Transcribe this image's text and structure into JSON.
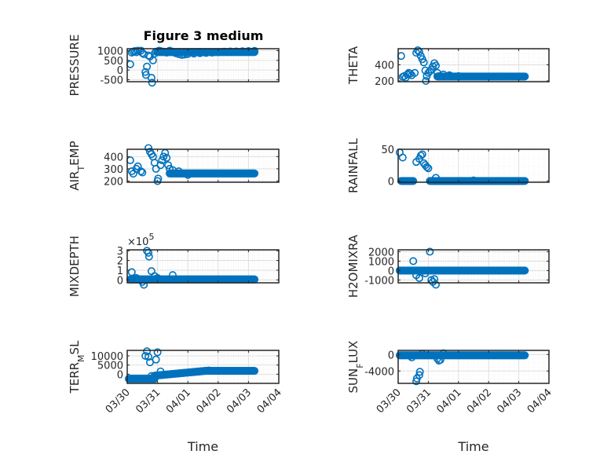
{
  "figure": {
    "title": "Figure 3 medium",
    "marker_color": "#0072BD",
    "axes_color": "#262626",
    "grid_color": "#dfdfdf"
  },
  "chart_data": [
    {
      "type": "scatter",
      "title": "Figure 3 medium",
      "ylabel": "PRESSURE",
      "ylabel_parts": [
        {
          "t": "PRESSURE",
          "sub": false
        }
      ],
      "xlabel": "",
      "xlim": [
        0,
        5
      ],
      "ylim": [
        -600,
        1100
      ],
      "yticks": [
        -500,
        0,
        500,
        1000
      ],
      "yticklabels": [
        "-500",
        "0",
        "500",
        "1000"
      ],
      "xticks": [
        0,
        1,
        2,
        3,
        4,
        5
      ],
      "xticklabels": [
        "03/30",
        "03/31",
        "04/01",
        "04/02",
        "04/03",
        "04/04"
      ],
      "show_xticklabels": false,
      "grid": true,
      "exponent": "",
      "points": [
        [
          0.1,
          300
        ],
        [
          0.15,
          900
        ],
        [
          0.2,
          950
        ],
        [
          0.25,
          980
        ],
        [
          0.3,
          920
        ],
        [
          0.35,
          1000
        ],
        [
          0.45,
          1000
        ],
        [
          0.5,
          880
        ],
        [
          0.55,
          820
        ],
        [
          0.6,
          -100
        ],
        [
          0.62,
          -250
        ],
        [
          0.65,
          180
        ],
        [
          0.7,
          750
        ],
        [
          0.75,
          700
        ],
        [
          0.8,
          -400
        ],
        [
          0.82,
          -650
        ],
        [
          0.85,
          500
        ],
        [
          0.9,
          850
        ],
        [
          0.95,
          950
        ],
        [
          1.05,
          1000
        ],
        [
          1.1,
          980
        ],
        [
          1.2,
          950
        ],
        [
          1.3,
          900
        ],
        [
          1.4,
          1000
        ],
        [
          1.5,
          950
        ],
        [
          1.6,
          870
        ],
        [
          1.7,
          820
        ],
        [
          1.8,
          780
        ],
        [
          1.9,
          800
        ],
        [
          2.0,
          830
        ],
        [
          2.2,
          850
        ],
        [
          2.4,
          870
        ],
        [
          2.6,
          880
        ],
        [
          2.8,
          900
        ],
        [
          3.0,
          920
        ],
        [
          3.2,
          950
        ],
        [
          3.4,
          960
        ],
        [
          3.6,
          960
        ],
        [
          3.8,
          970
        ],
        [
          4.0,
          980
        ],
        [
          4.2,
          990
        ]
      ],
      "dense_series": [
        {
          "x0": 1.0,
          "x1": 4.2,
          "y": 930
        }
      ]
    },
    {
      "type": "scatter",
      "ylabel": "THETA",
      "ylabel_parts": [
        {
          "t": "THETA",
          "sub": false
        }
      ],
      "xlim": [
        0,
        5
      ],
      "ylim": [
        190,
        600
      ],
      "yticks": [
        200,
        400
      ],
      "yticklabels": [
        "200",
        "400"
      ],
      "xticks": [
        0,
        1,
        2,
        3,
        4,
        5
      ],
      "xticklabels": [
        "03/30",
        "03/31",
        "04/01",
        "04/02",
        "04/03",
        "04/04"
      ],
      "show_xticklabels": false,
      "grid": true,
      "exponent": "",
      "points": [
        [
          0.1,
          510
        ],
        [
          0.15,
          250
        ],
        [
          0.2,
          260
        ],
        [
          0.25,
          240
        ],
        [
          0.3,
          280
        ],
        [
          0.35,
          300
        ],
        [
          0.4,
          290
        ],
        [
          0.45,
          270
        ],
        [
          0.55,
          300
        ],
        [
          0.6,
          550
        ],
        [
          0.65,
          580
        ],
        [
          0.7,
          560
        ],
        [
          0.75,
          510
        ],
        [
          0.8,
          470
        ],
        [
          0.85,
          430
        ],
        [
          0.9,
          330
        ],
        [
          0.95,
          260
        ],
        [
          0.92,
          200
        ],
        [
          1.0,
          300
        ],
        [
          1.05,
          320
        ],
        [
          1.1,
          340
        ],
        [
          1.15,
          380
        ],
        [
          1.2,
          420
        ],
        [
          1.25,
          390
        ],
        [
          1.3,
          300
        ],
        [
          1.35,
          260
        ],
        [
          1.5,
          280
        ],
        [
          1.7,
          270
        ],
        [
          2.0,
          260
        ]
      ],
      "dense_series": [
        {
          "x0": 1.3,
          "x1": 4.2,
          "y": 255
        }
      ]
    },
    {
      "type": "scatter",
      "ylabel": "AIR_TEMP",
      "ylabel_parts": [
        {
          "t": "AIR",
          "sub": false
        },
        {
          "t": "T",
          "sub": true
        },
        {
          "t": "EMP",
          "sub": false
        }
      ],
      "xlim": [
        0,
        5
      ],
      "ylim": [
        190,
        460
      ],
      "yticks": [
        200,
        300,
        400
      ],
      "yticklabels": [
        "200",
        "300",
        "400"
      ],
      "xticks": [
        0,
        1,
        2,
        3,
        4,
        5
      ],
      "xticklabels": [
        "03/30",
        "03/31",
        "04/01",
        "04/02",
        "04/03",
        "04/04"
      ],
      "show_xticklabels": false,
      "grid": true,
      "exponent": "",
      "points": [
        [
          0.1,
          370
        ],
        [
          0.15,
          280
        ],
        [
          0.2,
          260
        ],
        [
          0.3,
          300
        ],
        [
          0.35,
          320
        ],
        [
          0.45,
          280
        ],
        [
          0.5,
          270
        ],
        [
          0.7,
          470
        ],
        [
          0.75,
          440
        ],
        [
          0.8,
          420
        ],
        [
          0.85,
          400
        ],
        [
          0.9,
          350
        ],
        [
          0.95,
          300
        ],
        [
          1.0,
          200
        ],
        [
          1.02,
          220
        ],
        [
          1.1,
          330
        ],
        [
          1.15,
          370
        ],
        [
          1.2,
          400
        ],
        [
          1.25,
          430
        ],
        [
          1.3,
          390
        ],
        [
          1.35,
          330
        ],
        [
          1.4,
          300
        ],
        [
          1.5,
          290
        ],
        [
          1.7,
          280
        ],
        [
          2.0,
          250
        ]
      ],
      "dense_series": [
        {
          "x0": 1.4,
          "x1": 4.2,
          "y": 262
        }
      ]
    },
    {
      "type": "scatter",
      "ylabel": "RAINFALL",
      "ylabel_parts": [
        {
          "t": "RAINFALL",
          "sub": false
        }
      ],
      "xlim": [
        0,
        5
      ],
      "ylim": [
        -2,
        50
      ],
      "yticks": [
        0,
        50
      ],
      "yticklabels": [
        "0",
        "50"
      ],
      "xticks": [
        0,
        1,
        2,
        3,
        4,
        5
      ],
      "xticklabels": [
        "03/30",
        "03/31",
        "04/01",
        "04/02",
        "04/03",
        "04/04"
      ],
      "show_xticklabels": false,
      "grid": true,
      "exponent": "",
      "points": [
        [
          0.05,
          45
        ],
        [
          0.15,
          37
        ],
        [
          0.6,
          30
        ],
        [
          0.7,
          35
        ],
        [
          0.75,
          40
        ],
        [
          0.8,
          42
        ],
        [
          0.85,
          28
        ],
        [
          0.9,
          25
        ],
        [
          0.95,
          22
        ],
        [
          1.0,
          20
        ],
        [
          1.25,
          5
        ],
        [
          2.5,
          1
        ]
      ],
      "dense_series": [
        {
          "x0": 0.1,
          "x1": 0.5,
          "y": 0
        },
        {
          "x0": 1.05,
          "x1": 4.2,
          "y": 0
        }
      ]
    },
    {
      "type": "scatter",
      "ylabel": "MIXDEPTH",
      "ylabel_parts": [
        {
          "t": "MIXDEPTH",
          "sub": false
        }
      ],
      "xlim": [
        0,
        5
      ],
      "ylim": [
        -30000,
        310000
      ],
      "yticks": [
        0,
        100000,
        200000,
        300000
      ],
      "yticklabels": [
        "0",
        "1",
        "2",
        "3"
      ],
      "xticks": [
        0,
        1,
        2,
        3,
        4,
        5
      ],
      "xticklabels": [
        "03/30",
        "03/31",
        "04/01",
        "04/02",
        "04/03",
        "04/04"
      ],
      "show_xticklabels": false,
      "grid": true,
      "exponent": "×10^5",
      "points": [
        [
          0.15,
          80000
        ],
        [
          0.3,
          20000
        ],
        [
          0.5,
          -20000
        ],
        [
          0.55,
          -50000
        ],
        [
          0.65,
          300000
        ],
        [
          0.7,
          280000
        ],
        [
          0.72,
          240000
        ],
        [
          0.8,
          90000
        ],
        [
          0.9,
          40000
        ],
        [
          1.0,
          20000
        ],
        [
          1.5,
          50000
        ]
      ],
      "dense_series": [
        {
          "x0": 0.1,
          "x1": 4.2,
          "y": 5000
        }
      ]
    },
    {
      "type": "scatter",
      "ylabel": "H2OMIXRA",
      "ylabel_parts": [
        {
          "t": "H2OMIXRA",
          "sub": false
        }
      ],
      "xlim": [
        0,
        5
      ],
      "ylim": [
        -1300,
        2200
      ],
      "yticks": [
        -1000,
        0,
        1000,
        2000
      ],
      "yticklabels": [
        "-1000",
        "0",
        "1000",
        "2000"
      ],
      "xticks": [
        0,
        1,
        2,
        3,
        4,
        5
      ],
      "xticklabels": [
        "03/30",
        "03/31",
        "04/01",
        "04/02",
        "04/03",
        "04/04"
      ],
      "show_xticklabels": false,
      "grid": true,
      "exponent": "",
      "points": [
        [
          0.5,
          1000
        ],
        [
          0.6,
          -500
        ],
        [
          0.7,
          -800
        ],
        [
          0.9,
          -300
        ],
        [
          1.05,
          2000
        ],
        [
          1.1,
          -1000
        ],
        [
          1.15,
          -1200
        ],
        [
          1.2,
          -900
        ],
        [
          1.25,
          -1500
        ]
      ],
      "dense_series": [
        {
          "x0": 0.05,
          "x1": 4.2,
          "y": 0
        }
      ]
    },
    {
      "type": "scatter",
      "ylabel": "TERR_MSL",
      "ylabel_parts": [
        {
          "t": "TERR",
          "sub": false
        },
        {
          "t": "M",
          "sub": true
        },
        {
          "t": "SL",
          "sub": false
        }
      ],
      "xlim": [
        0,
        5
      ],
      "ylim": [
        -5000,
        13000
      ],
      "yticks": [
        0,
        5000,
        10000
      ],
      "yticklabels": [
        "0",
        "5000",
        "10000"
      ],
      "xticks": [
        0,
        1,
        2,
        3,
        4,
        5
      ],
      "xticklabels": [
        "03/30",
        "03/31",
        "04/01",
        "04/02",
        "04/03",
        "04/04"
      ],
      "show_xticklabels": true,
      "grid": true,
      "exponent": "",
      "xlabel": "Time",
      "points": [
        [
          0.65,
          12500
        ],
        [
          0.6,
          10000
        ],
        [
          0.7,
          9500
        ],
        [
          0.75,
          6500
        ],
        [
          1.0,
          12000
        ],
        [
          0.95,
          8000
        ],
        [
          1.1,
          1500
        ],
        [
          0.8,
          -1000
        ],
        [
          0.9,
          -2500
        ]
      ],
      "dense_series": [
        {
          "x0": 0.05,
          "x1": 0.9,
          "y": -2500
        },
        {
          "x0": 0.9,
          "x1": 2.7,
          "y": -800,
          "y1": 2000
        },
        {
          "x0": 2.7,
          "x1": 4.2,
          "y": 1800
        }
      ]
    },
    {
      "type": "scatter",
      "ylabel": "SUN_FLUX",
      "ylabel_parts": [
        {
          "t": "SUN",
          "sub": false
        },
        {
          "t": "F",
          "sub": true
        },
        {
          "t": "LUX",
          "sub": false
        }
      ],
      "xlim": [
        0,
        5
      ],
      "ylim": [
        -7000,
        1000
      ],
      "yticks": [
        -4000,
        0
      ],
      "yticklabels": [
        "-4000",
        "0"
      ],
      "xticks": [
        0,
        1,
        2,
        3,
        4,
        5
      ],
      "xticklabels": [
        "03/30",
        "03/31",
        "04/01",
        "04/02",
        "04/03",
        "04/04"
      ],
      "show_xticklabels": true,
      "grid": true,
      "exponent": "",
      "xlabel": "Time",
      "points": [
        [
          0.4,
          -300
        ],
        [
          0.45,
          -700
        ],
        [
          0.6,
          -6500
        ],
        [
          0.62,
          -5800
        ],
        [
          0.7,
          -5000
        ],
        [
          0.72,
          -4200
        ],
        [
          0.8,
          200
        ],
        [
          1.3,
          -1000
        ],
        [
          1.35,
          -1500
        ],
        [
          1.4,
          -1300
        ],
        [
          1.5,
          300
        ]
      ],
      "dense_series": [
        {
          "x0": 0.05,
          "x1": 4.2,
          "y": -200
        }
      ]
    }
  ]
}
